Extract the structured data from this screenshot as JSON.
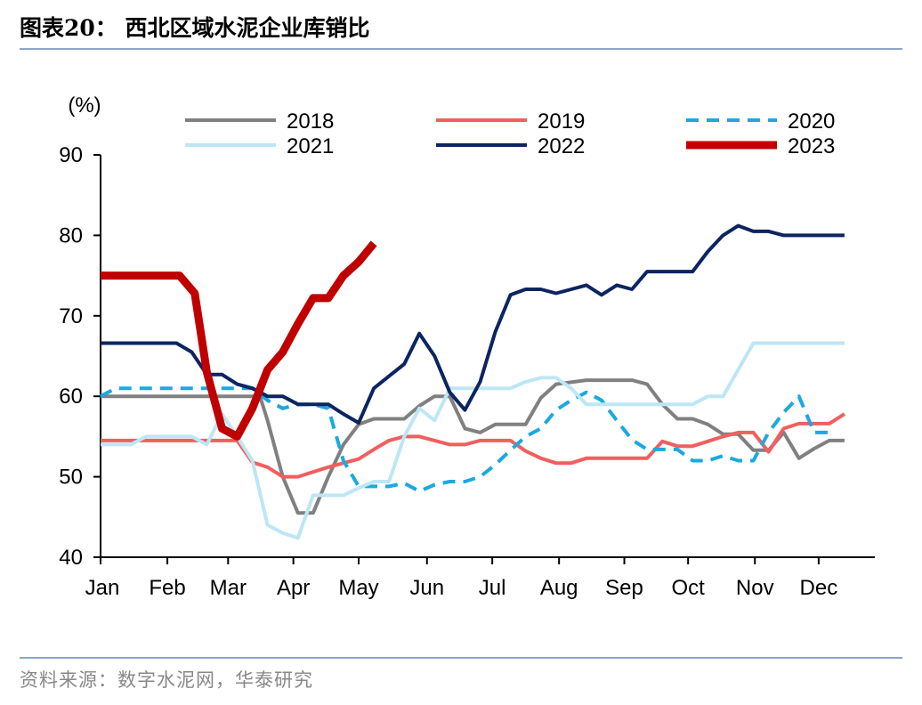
{
  "header": {
    "title": "图表20：  西北区域水泥企业库销比"
  },
  "footer": {
    "source": "资料来源：数字水泥网，华泰研究"
  },
  "chart_data": {
    "type": "line",
    "ylabel": "(%)",
    "ylim": [
      40,
      90
    ],
    "yticks": [
      40,
      50,
      60,
      70,
      80,
      90
    ],
    "xlim": [
      0,
      51
    ],
    "x_unit": "week of year",
    "month_labels": [
      "Jan",
      "Feb",
      "Mar",
      "Apr",
      "May",
      "Jun",
      "Jul",
      "Aug",
      "Sep",
      "Oct",
      "Nov",
      "Dec"
    ],
    "month_positions": [
      0,
      4.4,
      8.4,
      12.7,
      17,
      21.5,
      25.8,
      30.2,
      34.5,
      38.7,
      43.1,
      47.3
    ],
    "legend_position": "top",
    "grid": false,
    "series": [
      {
        "name": "2018",
        "color": "#808080",
        "width": 4,
        "dash": "",
        "points": [
          [
            0,
            60
          ],
          [
            4,
            60
          ],
          [
            6,
            60
          ],
          [
            8,
            60
          ],
          [
            9.5,
            60
          ],
          [
            10.5,
            60
          ],
          [
            11,
            57
          ],
          [
            12,
            50
          ],
          [
            13,
            45.5
          ],
          [
            14,
            45.5
          ],
          [
            15,
            50
          ],
          [
            16,
            54
          ],
          [
            17,
            56.5
          ],
          [
            18,
            57.2
          ],
          [
            20,
            57.2
          ],
          [
            21,
            58.8
          ],
          [
            22,
            60
          ],
          [
            23,
            60
          ],
          [
            24,
            56
          ],
          [
            25,
            55.5
          ],
          [
            26,
            56.5
          ],
          [
            27,
            56.5
          ],
          [
            28,
            56.5
          ],
          [
            29,
            59.8
          ],
          [
            30,
            61.5
          ],
          [
            32,
            62
          ],
          [
            35,
            62
          ],
          [
            36,
            61.5
          ],
          [
            37,
            59
          ],
          [
            38,
            57.2
          ],
          [
            39,
            57.2
          ],
          [
            40,
            56.5
          ],
          [
            41,
            55.3
          ],
          [
            42,
            55.3
          ],
          [
            43,
            53.3
          ],
          [
            44,
            53.3
          ],
          [
            45,
            55.5
          ],
          [
            46,
            52.3
          ],
          [
            47,
            53.5
          ],
          [
            48,
            54.5
          ],
          [
            49,
            54.5
          ]
        ]
      },
      {
        "name": "2019",
        "color": "#f05f5f",
        "width": 4,
        "dash": "",
        "points": [
          [
            0,
            54.5
          ],
          [
            4,
            54.5
          ],
          [
            8,
            54.5
          ],
          [
            9,
            54.5
          ],
          [
            10,
            51.8
          ],
          [
            11,
            51.2
          ],
          [
            12,
            50
          ],
          [
            13,
            50
          ],
          [
            14,
            50.6
          ],
          [
            15,
            51.2
          ],
          [
            16,
            51.7
          ],
          [
            17,
            52.2
          ],
          [
            18,
            53.4
          ],
          [
            19,
            54.5
          ],
          [
            20,
            55
          ],
          [
            21,
            55
          ],
          [
            22,
            54.5
          ],
          [
            23,
            54
          ],
          [
            24,
            54
          ],
          [
            25,
            54.5
          ],
          [
            27,
            54.5
          ],
          [
            28,
            53.2
          ],
          [
            29,
            52.3
          ],
          [
            30,
            51.7
          ],
          [
            31,
            51.7
          ],
          [
            32,
            52.3
          ],
          [
            35,
            52.3
          ],
          [
            36,
            52.3
          ],
          [
            37,
            54.4
          ],
          [
            38,
            53.8
          ],
          [
            39,
            53.8
          ],
          [
            40,
            54.4
          ],
          [
            41,
            55
          ],
          [
            42,
            55.5
          ],
          [
            43,
            55.5
          ],
          [
            44,
            53.1
          ],
          [
            45,
            56
          ],
          [
            46,
            56.6
          ],
          [
            47,
            56.6
          ],
          [
            48,
            56.6
          ],
          [
            49,
            57.8
          ]
        ]
      },
      {
        "name": "2020",
        "color": "#1ba9e0",
        "width": 4,
        "dash": "14,9",
        "points": [
          [
            0,
            60
          ],
          [
            1,
            61
          ],
          [
            4,
            61
          ],
          [
            8,
            61
          ],
          [
            9,
            61
          ],
          [
            10,
            61
          ],
          [
            11,
            59.5
          ],
          [
            12,
            58.5
          ],
          [
            13,
            59
          ],
          [
            14,
            59
          ],
          [
            15,
            58.5
          ],
          [
            16,
            52
          ],
          [
            17,
            48.8
          ],
          [
            19,
            48.8
          ],
          [
            20,
            49.2
          ],
          [
            21,
            48.2
          ],
          [
            22,
            49
          ],
          [
            23,
            49.4
          ],
          [
            24,
            49.4
          ],
          [
            25,
            50
          ],
          [
            26,
            51.5
          ],
          [
            27,
            53.3
          ],
          [
            28,
            55
          ],
          [
            29,
            56
          ],
          [
            30,
            58.3
          ],
          [
            31,
            59.5
          ],
          [
            32,
            60.5
          ],
          [
            33,
            59.5
          ],
          [
            34,
            57
          ],
          [
            35,
            54.6
          ],
          [
            36,
            53.4
          ],
          [
            37,
            53.4
          ],
          [
            38,
            53.4
          ],
          [
            39,
            52
          ],
          [
            40,
            52
          ],
          [
            41,
            52.6
          ],
          [
            42,
            52
          ],
          [
            43,
            52
          ],
          [
            44,
            55.5
          ],
          [
            45,
            58
          ],
          [
            46,
            60
          ],
          [
            47,
            55.5
          ],
          [
            48,
            55.5
          ]
        ]
      },
      {
        "name": "2021",
        "color": "#bde6f6",
        "width": 4,
        "dash": "",
        "points": [
          [
            0,
            54
          ],
          [
            1,
            54
          ],
          [
            2,
            54
          ],
          [
            3,
            55
          ],
          [
            4,
            55
          ],
          [
            5,
            55
          ],
          [
            6,
            55
          ],
          [
            7,
            54
          ],
          [
            8,
            57.8
          ],
          [
            9,
            55
          ],
          [
            10,
            52
          ],
          [
            11,
            44
          ],
          [
            12,
            43
          ],
          [
            13,
            42.4
          ],
          [
            14,
            47.7
          ],
          [
            15,
            47.7
          ],
          [
            16,
            47.7
          ],
          [
            17,
            48.6
          ],
          [
            18,
            49.4
          ],
          [
            19,
            49.4
          ],
          [
            20,
            55
          ],
          [
            21,
            58.5
          ],
          [
            22,
            57
          ],
          [
            23,
            61
          ],
          [
            24,
            61
          ],
          [
            25,
            61
          ],
          [
            26,
            61
          ],
          [
            27,
            61
          ],
          [
            28,
            61.8
          ],
          [
            29,
            62.3
          ],
          [
            30,
            62.3
          ],
          [
            31,
            61
          ],
          [
            32,
            59
          ],
          [
            33,
            59
          ],
          [
            34,
            59
          ],
          [
            35,
            59
          ],
          [
            36,
            59
          ],
          [
            37,
            59
          ],
          [
            38,
            59
          ],
          [
            39,
            59
          ],
          [
            40,
            60
          ],
          [
            41,
            60
          ],
          [
            42,
            63.3
          ],
          [
            43,
            66.6
          ],
          [
            44,
            66.6
          ],
          [
            45,
            66.6
          ],
          [
            46,
            66.6
          ],
          [
            47,
            66.6
          ],
          [
            48,
            66.6
          ],
          [
            49,
            66.6
          ]
        ]
      },
      {
        "name": "2022",
        "color": "#0c2461",
        "width": 4,
        "dash": "",
        "points": [
          [
            0,
            66.6
          ],
          [
            4,
            66.6
          ],
          [
            5,
            66.6
          ],
          [
            6,
            65.5
          ],
          [
            7,
            62.7
          ],
          [
            8,
            62.7
          ],
          [
            9,
            61.5
          ],
          [
            10,
            61
          ],
          [
            11,
            60
          ],
          [
            12,
            60
          ],
          [
            13,
            59
          ],
          [
            14,
            59
          ],
          [
            15,
            59
          ],
          [
            16,
            57.8
          ],
          [
            17,
            56.7
          ],
          [
            18,
            61
          ],
          [
            19,
            62.5
          ],
          [
            20,
            64
          ],
          [
            21,
            67.8
          ],
          [
            22,
            65
          ],
          [
            23,
            60.5
          ],
          [
            24,
            58.3
          ],
          [
            25,
            61.8
          ],
          [
            26,
            68
          ],
          [
            27,
            72.6
          ],
          [
            28,
            73.3
          ],
          [
            29,
            73.3
          ],
          [
            30,
            72.8
          ],
          [
            31,
            73.3
          ],
          [
            32,
            73.8
          ],
          [
            33,
            72.6
          ],
          [
            34,
            73.8
          ],
          [
            35,
            73.3
          ],
          [
            36,
            75.5
          ],
          [
            37,
            75.5
          ],
          [
            38,
            75.5
          ],
          [
            39,
            75.5
          ],
          [
            40,
            78
          ],
          [
            41,
            80
          ],
          [
            42,
            81.2
          ],
          [
            43,
            80.5
          ],
          [
            44,
            80.5
          ],
          [
            45,
            80
          ],
          [
            46,
            80
          ],
          [
            47,
            80
          ],
          [
            48,
            80
          ],
          [
            49,
            80
          ]
        ]
      },
      {
        "name": "2023",
        "color": "#c00000",
        "width": 9,
        "dash": "",
        "points": [
          [
            0,
            75
          ],
          [
            4,
            75
          ],
          [
            5.2,
            75
          ],
          [
            6.2,
            72.8
          ],
          [
            7,
            63
          ],
          [
            8,
            56
          ],
          [
            9,
            55
          ],
          [
            10,
            58.5
          ],
          [
            11,
            63.3
          ],
          [
            12,
            65.5
          ],
          [
            13,
            69
          ],
          [
            14,
            72.2
          ],
          [
            15,
            72.2
          ],
          [
            16,
            75
          ],
          [
            17,
            76.7
          ],
          [
            18,
            79
          ]
        ]
      }
    ]
  }
}
